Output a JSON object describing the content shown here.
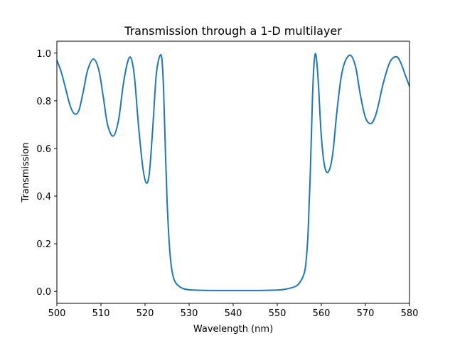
{
  "chart_data": {
    "type": "line",
    "title": "Transmission through a 1-D multilayer",
    "xlabel": "Wavelength (nm)",
    "ylabel": "Transmission",
    "xlim": [
      500,
      580
    ],
    "ylim": [
      -0.05,
      1.05
    ],
    "grid": false,
    "legend": null,
    "xticks": [
      500,
      510,
      520,
      530,
      540,
      550,
      560,
      570,
      580
    ],
    "xtick_labels": [
      "500",
      "510",
      "520",
      "530",
      "540",
      "550",
      "560",
      "570",
      "580"
    ],
    "yticks": [
      0.0,
      0.2,
      0.4,
      0.6,
      0.8,
      1.0
    ],
    "ytick_labels": [
      "0.0",
      "0.2",
      "0.4",
      "0.6",
      "0.8",
      "1.0"
    ],
    "series": [
      {
        "name": "Transmission",
        "color": "#1f77b4",
        "x": [
          500,
          501,
          502,
          503,
          504,
          505,
          506,
          507,
          508.3,
          509.5,
          510.5,
          511.5,
          512.8,
          514,
          515,
          516,
          516.8,
          517.6,
          518.5,
          519.5,
          520.3,
          521,
          521.8,
          522.5,
          523.2,
          523.8,
          524.2,
          524.6,
          525,
          525.5,
          526,
          526.5,
          527,
          528,
          529,
          530,
          532,
          535,
          540,
          545,
          550,
          552,
          554,
          555,
          556,
          556.5,
          557,
          557.5,
          558,
          558.4,
          558.8,
          559.3,
          560,
          560.8,
          561.7,
          562.6,
          563.5,
          564.5,
          565.5,
          566.7,
          567.8,
          568.8,
          570,
          571.3,
          572.5,
          574,
          575.5,
          577,
          578,
          579,
          580
        ],
        "y": [
          0.97,
          0.92,
          0.85,
          0.78,
          0.745,
          0.76,
          0.84,
          0.93,
          0.975,
          0.93,
          0.82,
          0.7,
          0.652,
          0.72,
          0.86,
          0.96,
          0.98,
          0.9,
          0.7,
          0.52,
          0.455,
          0.5,
          0.7,
          0.9,
          0.98,
          0.98,
          0.85,
          0.6,
          0.38,
          0.2,
          0.1,
          0.055,
          0.035,
          0.018,
          0.01,
          0.007,
          0.005,
          0.004,
          0.004,
          0.004,
          0.006,
          0.01,
          0.02,
          0.035,
          0.07,
          0.12,
          0.25,
          0.5,
          0.82,
          0.97,
          0.99,
          0.88,
          0.65,
          0.52,
          0.505,
          0.58,
          0.75,
          0.9,
          0.97,
          0.99,
          0.94,
          0.83,
          0.73,
          0.705,
          0.75,
          0.87,
          0.96,
          0.985,
          0.96,
          0.91,
          0.86
        ]
      }
    ]
  }
}
